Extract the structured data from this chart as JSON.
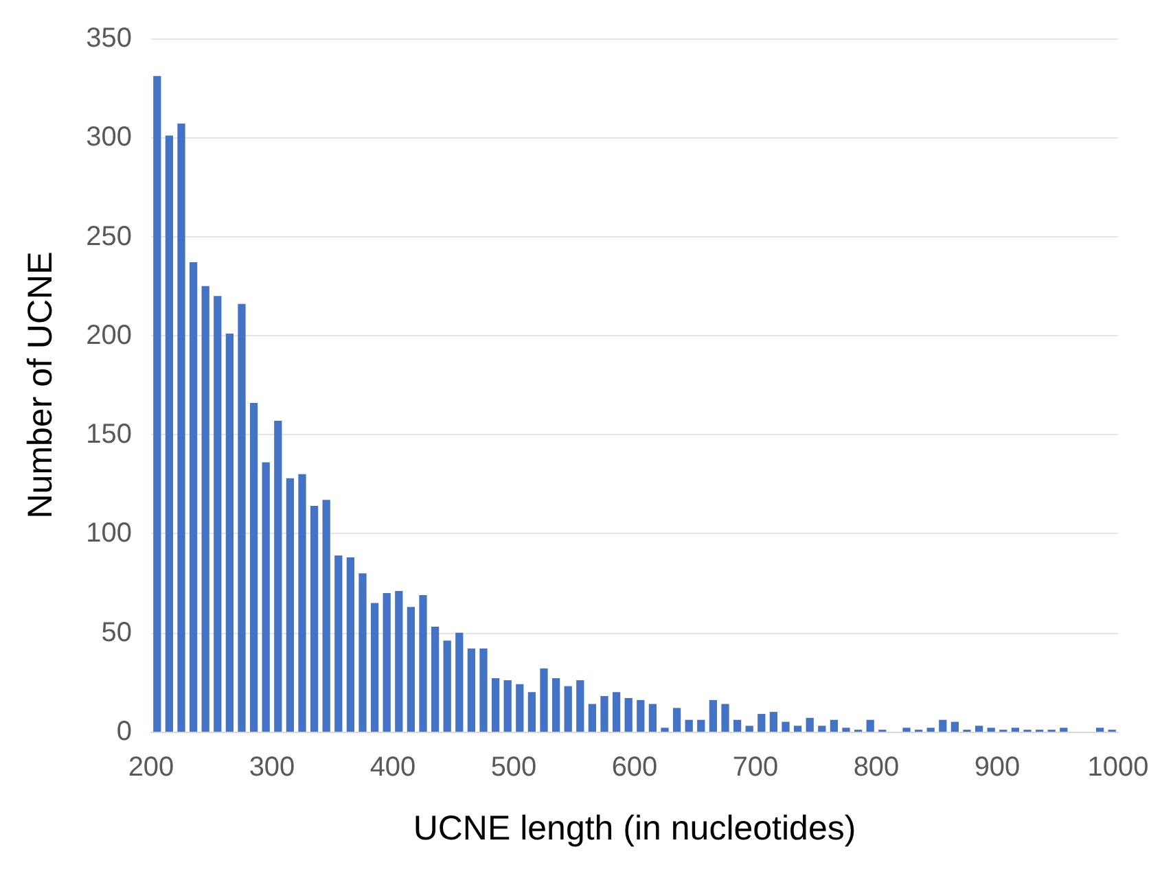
{
  "chart_data": {
    "type": "histogram",
    "xlabel": "UCNE length (in nucleotides)",
    "ylabel": "Number of UCNE",
    "color": "#4472c4",
    "bins": [
      200,
      210,
      220,
      230,
      240,
      250,
      260,
      270,
      280,
      290,
      300,
      310,
      320,
      330,
      340,
      350,
      360,
      370,
      380,
      390,
      400,
      410,
      420,
      430,
      440,
      450,
      460,
      470,
      480,
      490,
      500,
      510,
      520,
      530,
      540,
      550,
      560,
      570,
      580,
      590,
      600,
      610,
      620,
      630,
      640,
      650,
      660,
      670,
      680,
      690,
      700,
      710,
      720,
      730,
      740,
      750,
      760,
      770,
      780,
      790,
      800,
      810,
      820,
      830,
      840,
      850,
      860,
      870,
      880,
      890,
      900,
      910,
      920,
      930,
      940,
      950,
      960,
      970,
      980,
      990,
      1000
    ],
    "values": [
      331,
      301,
      307,
      237,
      225,
      220,
      201,
      216,
      166,
      136,
      157,
      128,
      130,
      114,
      117,
      89,
      88,
      80,
      65,
      70,
      71,
      63,
      69,
      53,
      46,
      50,
      42,
      42,
      27,
      26,
      24,
      20,
      32,
      27,
      23,
      26,
      14,
      18,
      20,
      17,
      16,
      14,
      2,
      12,
      6,
      6,
      16,
      14,
      6,
      3,
      9,
      10,
      5,
      3,
      7,
      3,
      6,
      2,
      1,
      6,
      1,
      0,
      2,
      1,
      2,
      6,
      5,
      1,
      3,
      2,
      1,
      2,
      1,
      1,
      1,
      2,
      0,
      0,
      2,
      1
    ],
    "xlim": [
      200,
      1000
    ],
    "xticks": [
      200,
      300,
      400,
      500,
      600,
      700,
      800,
      900,
      1000
    ],
    "ylim": [
      0,
      350
    ],
    "yticks": [
      0,
      50,
      100,
      150,
      200,
      250,
      300,
      350
    ],
    "grid": "y"
  }
}
